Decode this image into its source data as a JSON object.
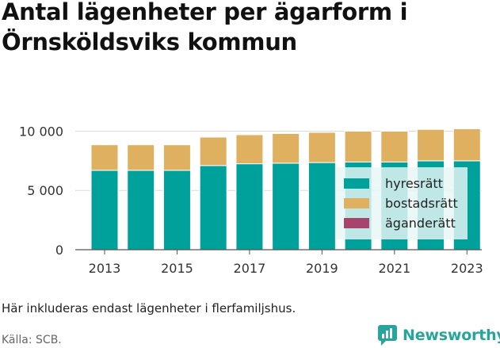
{
  "title": "Antal lägenheter per ägarform i Örnsköldsviks kommun",
  "note": "Här inkluderas endast lägenheter i flerfamiljshus.",
  "source": "Källa: SCB.",
  "brand": "Newsworthy",
  "icons": {
    "brand_logo": "bar-chart-speech-bubble-icon"
  },
  "colors": {
    "hyresratt": "#00a19a",
    "bostadsratt": "#deb060",
    "aganderatt": "#a8436b",
    "grid": "#dcdcdc",
    "axis": "#555555"
  },
  "chart_data": {
    "type": "bar",
    "stacked": true,
    "categories": [
      "2013",
      "2014",
      "2015",
      "2016",
      "2017",
      "2018",
      "2019",
      "2020",
      "2021",
      "2022",
      "2023"
    ],
    "x_tick_labels": [
      "2013",
      "2015",
      "2017",
      "2019",
      "2021",
      "2023"
    ],
    "y_tick_labels": [
      "0",
      "5 000",
      "10 000"
    ],
    "y_ticks": [
      0,
      5000,
      10000
    ],
    "ylim": [
      0,
      10700
    ],
    "grid": true,
    "legend_position": "bottom-right",
    "series": [
      {
        "name": "hyresrätt",
        "color": "#00a19a",
        "values": [
          6700,
          6700,
          6700,
          7100,
          7250,
          7300,
          7350,
          7400,
          7400,
          7500,
          7500
        ]
      },
      {
        "name": "bostadsrätt",
        "color": "#deb060",
        "values": [
          2150,
          2150,
          2150,
          2400,
          2450,
          2500,
          2550,
          2600,
          2600,
          2650,
          2700
        ]
      },
      {
        "name": "äganderätt",
        "color": "#a8436b",
        "values": [
          0,
          0,
          0,
          0,
          0,
          0,
          0,
          0,
          0,
          0,
          0
        ]
      }
    ]
  }
}
